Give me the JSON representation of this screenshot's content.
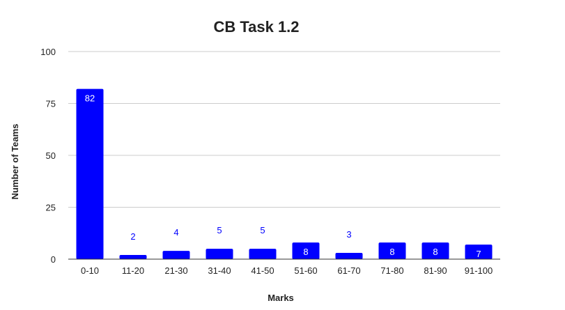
{
  "chart_data": {
    "type": "bar",
    "title": "CB Task 1.2",
    "xlabel": "Marks",
    "ylabel": "Number of Teams",
    "categories": [
      "0-10",
      "11-20",
      "21-30",
      "31-40",
      "41-50",
      "51-60",
      "61-70",
      "71-80",
      "81-90",
      "91-100"
    ],
    "values": [
      82,
      2,
      4,
      5,
      5,
      8,
      3,
      8,
      8,
      7
    ],
    "ylim": [
      0,
      100
    ],
    "yticks": [
      0,
      25,
      50,
      75,
      100
    ],
    "grid": true,
    "legend": "none",
    "data_labels": true,
    "colors": {
      "bar": "#0000ff",
      "label_inside": "#ffffff",
      "label_outside": "#0000ff",
      "grid": "#cccccc",
      "axis": "#333333"
    }
  }
}
